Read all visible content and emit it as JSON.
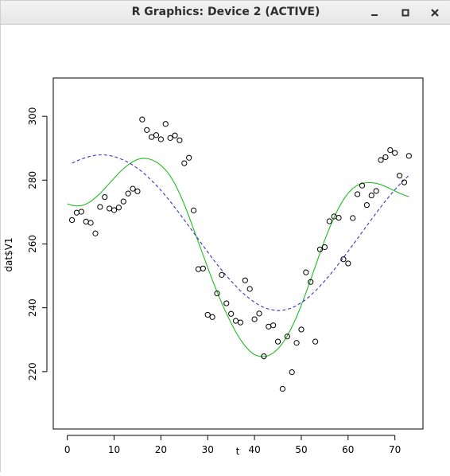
{
  "window": {
    "title": "R Graphics: Device 2 (ACTIVE)",
    "controls": [
      "minimize-icon",
      "maximize-icon",
      "close-icon"
    ]
  },
  "chart_data": {
    "type": "scatter",
    "xlabel": "t",
    "ylabel": "dat$V1",
    "xlim": [
      -3,
      76
    ],
    "ylim": [
      202,
      312
    ],
    "x_ticks": [
      0,
      10,
      20,
      30,
      40,
      50,
      60,
      70
    ],
    "y_ticks": [
      220,
      240,
      260,
      280,
      300
    ],
    "grid": false,
    "series": [
      {
        "kind": "points",
        "color": "#000000",
        "x": [
          1,
          2,
          3,
          4,
          5,
          6,
          7,
          8,
          9,
          10,
          11,
          12,
          13,
          14,
          15,
          16,
          17,
          18,
          19,
          20,
          21,
          22,
          23,
          24,
          25,
          26,
          27,
          28,
          29,
          30,
          31,
          32,
          33,
          34,
          35,
          36,
          37,
          38,
          39,
          40,
          41,
          42,
          43,
          44,
          45,
          46,
          47,
          48,
          49,
          50,
          51,
          52,
          53,
          54,
          55,
          56,
          57,
          58,
          59,
          60,
          61,
          62,
          63,
          64,
          65,
          66,
          67,
          68,
          69,
          70,
          71,
          72,
          73
        ],
        "y": [
          267.5,
          269.8,
          270.1,
          267.0,
          266.6,
          263.3,
          271.6,
          274.7,
          271.1,
          270.6,
          271.4,
          273.3,
          275.8,
          277.3,
          276.5,
          299.0,
          295.7,
          293.5,
          294.1,
          292.8,
          297.6,
          293.2,
          294.0,
          292.5,
          285.3,
          287.0,
          270.5,
          252.1,
          252.3,
          237.8,
          237.1,
          244.5,
          250.3,
          241.4,
          238.1,
          235.9,
          235.4,
          248.6,
          245.9,
          236.4,
          238.2,
          224.8,
          234.1,
          234.5,
          229.4,
          214.6,
          231.0,
          219.8,
          229.0,
          233.2,
          251.1,
          248.1,
          229.4,
          258.3,
          259.0,
          267.1,
          268.6,
          268.2,
          255.2,
          253.9,
          268.1,
          275.6,
          278.3,
          272.2,
          275.2,
          276.6,
          286.3,
          287.2,
          289.4,
          288.5,
          281.4,
          279.3,
          287.6
        ]
      },
      {
        "kind": "line",
        "style": "solid",
        "color": "#22bb22",
        "x": [
          0,
          1,
          2,
          3,
          4,
          5,
          6,
          7,
          8,
          9,
          10,
          11,
          12,
          13,
          14,
          15,
          16,
          17,
          18,
          19,
          20,
          21,
          22,
          23,
          24,
          25,
          26,
          27,
          28,
          29,
          30,
          31,
          32,
          33,
          34,
          35,
          36,
          37,
          38,
          39,
          40,
          41,
          42,
          43,
          44,
          45,
          46,
          47,
          48,
          49,
          50,
          51,
          52,
          53,
          54,
          55,
          56,
          57,
          58,
          59,
          60,
          61,
          62,
          63,
          64,
          65,
          66,
          67,
          68,
          69,
          70,
          71,
          72,
          73
        ],
        "y": [
          272.6,
          272.1,
          271.9,
          272.0,
          272.5,
          273.3,
          274.5,
          275.8,
          277.4,
          279.0,
          280.6,
          282.2,
          283.6,
          284.8,
          285.8,
          286.5,
          286.8,
          286.8,
          286.4,
          285.7,
          284.6,
          283.2,
          281.3,
          278.8,
          275.8,
          272.4,
          268.6,
          264.6,
          260.6,
          256.6,
          252.6,
          248.7,
          245.0,
          241.5,
          238.2,
          235.2,
          232.4,
          230.0,
          228.0,
          226.4,
          225.3,
          224.8,
          224.7,
          225.0,
          225.8,
          227.1,
          228.9,
          231.2,
          234.0,
          237.2,
          240.8,
          244.7,
          248.8,
          253.0,
          257.2,
          261.2,
          264.9,
          268.3,
          271.3,
          273.9,
          275.9,
          277.4,
          278.4,
          279.0,
          279.2,
          279.2,
          279.0,
          278.6,
          278.0,
          277.3,
          276.6,
          275.9,
          275.3,
          274.8
        ]
      },
      {
        "kind": "line",
        "style": "dashed",
        "color": "#3333cc",
        "x": [
          1,
          2,
          3,
          4,
          5,
          6,
          7,
          8,
          9,
          10,
          11,
          12,
          13,
          14,
          15,
          16,
          17,
          18,
          19,
          20,
          21,
          22,
          23,
          24,
          25,
          26,
          27,
          28,
          29,
          30,
          31,
          32,
          33,
          34,
          35,
          36,
          37,
          38,
          39,
          40,
          41,
          42,
          43,
          44,
          45,
          46,
          47,
          48,
          49,
          50,
          51,
          52,
          53,
          54,
          55,
          56,
          57,
          58,
          59,
          60,
          61,
          62,
          63,
          64,
          65,
          66,
          67,
          68,
          69,
          70,
          71,
          72,
          73
        ],
        "y": [
          285.3,
          286.0,
          286.6,
          287.1,
          287.5,
          287.8,
          287.9,
          287.9,
          287.7,
          287.4,
          286.9,
          286.3,
          285.6,
          284.7,
          283.7,
          282.6,
          281.3,
          279.9,
          278.4,
          276.8,
          275.1,
          273.3,
          271.4,
          269.5,
          267.5,
          265.5,
          263.5,
          261.5,
          259.5,
          257.5,
          255.5,
          253.6,
          251.8,
          250.0,
          248.4,
          246.8,
          245.3,
          244.0,
          242.8,
          241.7,
          240.8,
          240.1,
          239.6,
          239.3,
          239.1,
          239.2,
          239.5,
          240.0,
          240.7,
          241.6,
          242.6,
          243.9,
          245.3,
          246.8,
          248.4,
          250.1,
          251.9,
          253.8,
          255.7,
          257.7,
          259.7,
          261.7,
          263.7,
          265.7,
          267.7,
          269.7,
          271.6,
          273.5,
          275.3,
          277.0,
          278.6,
          280.1,
          281.5
        ]
      }
    ]
  }
}
